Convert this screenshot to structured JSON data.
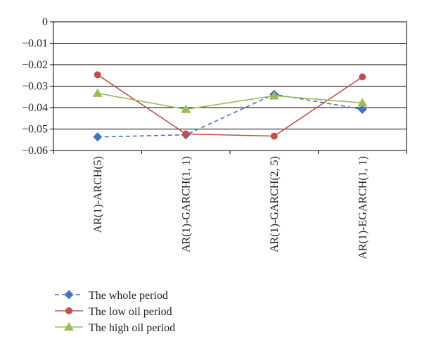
{
  "chart_data": {
    "type": "line",
    "categories": [
      "AR(1)-ARCH(5)",
      "AR(1)-GARCH(1, 1)",
      "AR(1)-GARCH(2, 5)",
      "AR(1)-EGARCH(1, 1)"
    ],
    "ylim": [
      -0.06,
      0
    ],
    "yticks": [
      0,
      -0.01,
      -0.02,
      -0.03,
      -0.04,
      -0.05,
      -0.06
    ],
    "ytick_labels": [
      "0",
      "−0.01",
      "−0.02",
      "−0.03",
      "−0.04",
      "−0.05",
      "−0.06"
    ],
    "grid": true,
    "legend_position": "bottom",
    "series": [
      {
        "name": "The whole period",
        "values": [
          -0.0537,
          -0.0527,
          -0.0338,
          -0.0408
        ],
        "color": "#4472C4",
        "marker": "diamond",
        "dash": "dashed"
      },
      {
        "name": "The low oil period",
        "values": [
          -0.0247,
          -0.0523,
          -0.0533,
          -0.0257
        ],
        "color": "#C0504D",
        "marker": "circle",
        "dash": "solid"
      },
      {
        "name": "The high oil period",
        "values": [
          -0.0333,
          -0.0408,
          -0.0345,
          -0.0378
        ],
        "color": "#9BBB59",
        "marker": "triangle",
        "dash": "solid"
      }
    ]
  }
}
